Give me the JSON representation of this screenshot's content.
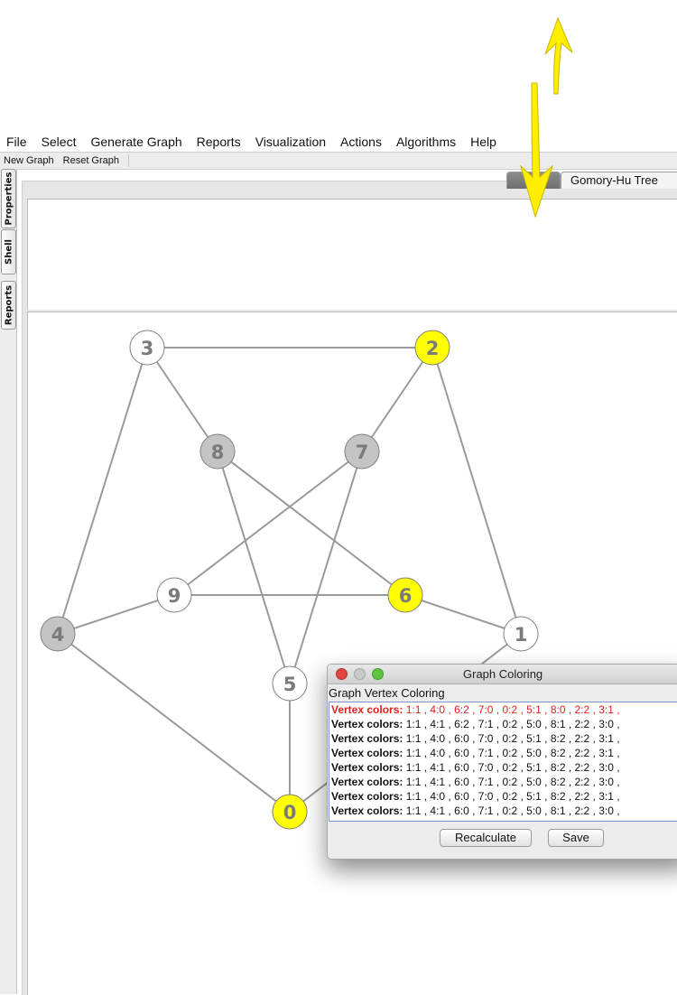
{
  "menubar": {
    "items": [
      "File",
      "Select",
      "Generate Graph",
      "Reports",
      "Visualization",
      "Actions",
      "Algorithms",
      "Help"
    ]
  },
  "toolbar": {
    "buttons": [
      "New Graph",
      "Reset Graph"
    ]
  },
  "side_tabs": [
    "Properties",
    "Shell",
    "Reports"
  ],
  "view_tabs": {
    "view_label": "",
    "gomory_label": "Gomory-Hu Tree"
  },
  "graph": {
    "vertices": [
      {
        "id": "0",
        "label": "0",
        "color": "yellow"
      },
      {
        "id": "1",
        "label": "1",
        "color": "white"
      },
      {
        "id": "2",
        "label": "2",
        "color": "yellow"
      },
      {
        "id": "3",
        "label": "3",
        "color": "white"
      },
      {
        "id": "4",
        "label": "4",
        "color": "gray"
      },
      {
        "id": "5",
        "label": "5",
        "color": "white"
      },
      {
        "id": "6",
        "label": "6",
        "color": "yellow"
      },
      {
        "id": "7",
        "label": "7",
        "color": "gray"
      },
      {
        "id": "8",
        "label": "8",
        "color": "gray"
      },
      {
        "id": "9",
        "label": "9",
        "color": "white"
      }
    ],
    "edges": [
      [
        "3",
        "2"
      ],
      [
        "3",
        "8"
      ],
      [
        "3",
        "4"
      ],
      [
        "2",
        "7"
      ],
      [
        "2",
        "1"
      ],
      [
        "8",
        "6"
      ],
      [
        "8",
        "5"
      ],
      [
        "7",
        "9"
      ],
      [
        "7",
        "5"
      ],
      [
        "9",
        "6"
      ],
      [
        "9",
        "4"
      ],
      [
        "6",
        "1"
      ],
      [
        "4",
        "0"
      ],
      [
        "5",
        "0"
      ],
      [
        "0",
        "1"
      ]
    ]
  },
  "colors": {
    "yellow": "#ffff00",
    "white": "#ffffff",
    "gray": "#c4c4c4",
    "edge": "#9a9a9a",
    "vertex_border": "#808080",
    "highlight_row": "#e02020",
    "arrow": "#ffee00"
  },
  "dialog": {
    "title": "Graph Coloring",
    "header": "Graph Vertex Coloring",
    "row_prefix": "Vertex colors:",
    "rows": [
      {
        "text": "1:1 , 4:0 , 6:2 , 7:0 , 0:2 , 5:1 , 8:0 , 2:2 , 3:1 ,",
        "selected": true
      },
      {
        "text": "1:1 , 4:1 , 6:2 , 7:1 , 0:2 , 5:0 , 8:1 , 2:2 , 3:0 ,",
        "selected": false
      },
      {
        "text": "1:1 , 4:0 , 6:0 , 7:0 , 0:2 , 5:1 , 8:2 , 2:2 , 3:1 ,",
        "selected": false
      },
      {
        "text": "1:1 , 4:0 , 6:0 , 7:1 , 0:2 , 5:0 , 8:2 , 2:2 , 3:1 ,",
        "selected": false
      },
      {
        "text": "1:1 , 4:1 , 6:0 , 7:0 , 0:2 , 5:1 , 8:2 , 2:2 , 3:0 ,",
        "selected": false
      },
      {
        "text": "1:1 , 4:1 , 6:0 , 7:1 , 0:2 , 5:0 , 8:2 , 2:2 , 3:0 ,",
        "selected": false
      },
      {
        "text": "1:1 , 4:0 , 6:0 , 7:0 , 0:2 , 5:1 , 8:2 , 2:2 , 3:1 ,",
        "selected": false
      },
      {
        "text": "1:1 , 4:1 , 6:0 , 7:1 , 0:2 , 5:0 , 8:1 , 2:2 , 3:0 ,",
        "selected": false
      }
    ],
    "buttons": {
      "recalculate": "Recalculate",
      "save": "Save"
    }
  }
}
